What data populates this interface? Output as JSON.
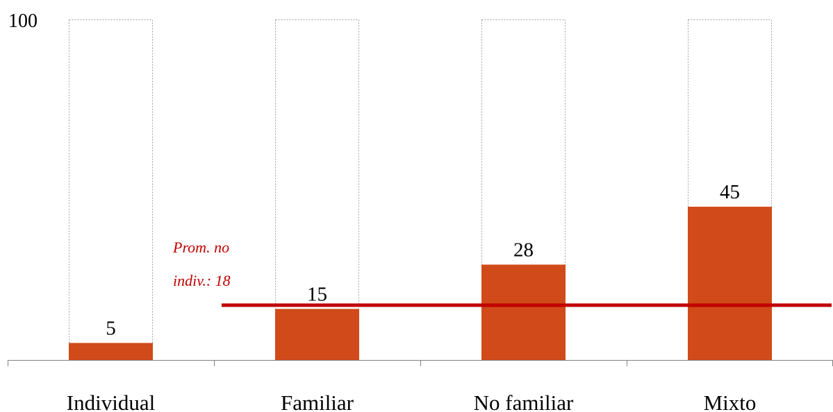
{
  "chart_data": {
    "type": "bar",
    "categories": [
      "Individual",
      "Familiar",
      "No familiar",
      "Mixto"
    ],
    "values": [
      5,
      15,
      28,
      45
    ],
    "ylim": [
      0,
      100
    ],
    "y_tick_labels": [
      "100"
    ],
    "data_labels": [
      "5",
      "15",
      "28",
      "45"
    ],
    "reference_line": {
      "value": 18,
      "label_lines": [
        "Prom. no",
        "indiv.: 18"
      ],
      "starts_after_category": "Individual"
    },
    "max_outline_value": 100,
    "grid": false,
    "colors": {
      "bar": "#d14a1a",
      "outline": "#a0a0a0",
      "reference_line": "#c00000",
      "reference_label": "#c00000",
      "axis": "#808080"
    }
  }
}
